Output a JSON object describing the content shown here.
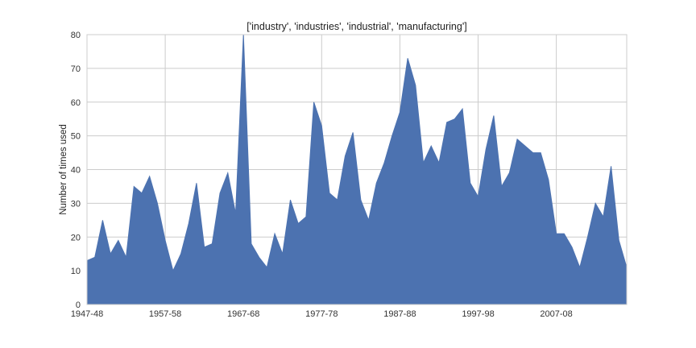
{
  "chart_data": {
    "type": "area",
    "title": "['industry', 'industries', 'industrial', 'manufacturing']",
    "xlabel": "",
    "ylabel": "Number of times used",
    "ylim": [
      0,
      80
    ],
    "yticks": [
      0,
      10,
      20,
      30,
      40,
      50,
      60,
      70,
      80
    ],
    "xlim": [
      1947,
      2016
    ],
    "xticks": [
      {
        "label": "1947-48",
        "value": 1947
      },
      {
        "label": "1957-58",
        "value": 1957
      },
      {
        "label": "1967-68",
        "value": 1967
      },
      {
        "label": "1977-78",
        "value": 1977
      },
      {
        "label": "1987-88",
        "value": 1987
      },
      {
        "label": "1997-98",
        "value": 1997
      },
      {
        "label": "2007-08",
        "value": 2007
      }
    ],
    "grid": true,
    "colors": {
      "area": "#4c72b0",
      "grid": "#cccccc",
      "frame": "#cccccc"
    },
    "series": [
      {
        "x": [
          1947,
          1948,
          1949,
          1950,
          1951,
          1952,
          1953,
          1954,
          1955,
          1956,
          1957,
          1958,
          1959,
          1960,
          1961,
          1962,
          1963,
          1964,
          1965,
          1966,
          1967,
          1968,
          1969,
          1970,
          1971,
          1972,
          1973,
          1974,
          1975,
          1976,
          1977,
          1978,
          1979,
          1980,
          1981,
          1982,
          1983,
          1984,
          1985,
          1986,
          1987,
          1988,
          1989,
          1990,
          1991,
          1992,
          1993,
          1994,
          1995,
          1996,
          1997,
          1998,
          1999,
          2000,
          2001,
          2002,
          2003,
          2004,
          2005,
          2006,
          2007,
          2008,
          2009,
          2010,
          2011,
          2012,
          2013,
          2014,
          2015,
          2016
        ],
        "values": [
          13,
          14,
          25,
          15,
          19,
          14,
          35,
          33,
          38,
          30,
          19,
          10,
          15,
          24,
          36,
          17,
          18,
          33,
          39,
          27,
          80,
          18,
          14,
          11,
          21,
          15,
          31,
          24,
          26,
          60,
          53,
          33,
          31,
          44,
          51,
          31,
          25,
          36,
          42,
          50,
          57,
          73,
          65,
          42,
          47,
          42,
          54,
          55,
          58,
          36,
          32,
          46,
          56,
          35,
          39,
          49,
          47,
          45,
          45,
          37,
          21,
          21,
          17,
          11,
          20,
          30,
          26,
          41,
          19,
          11
        ]
      }
    ]
  }
}
